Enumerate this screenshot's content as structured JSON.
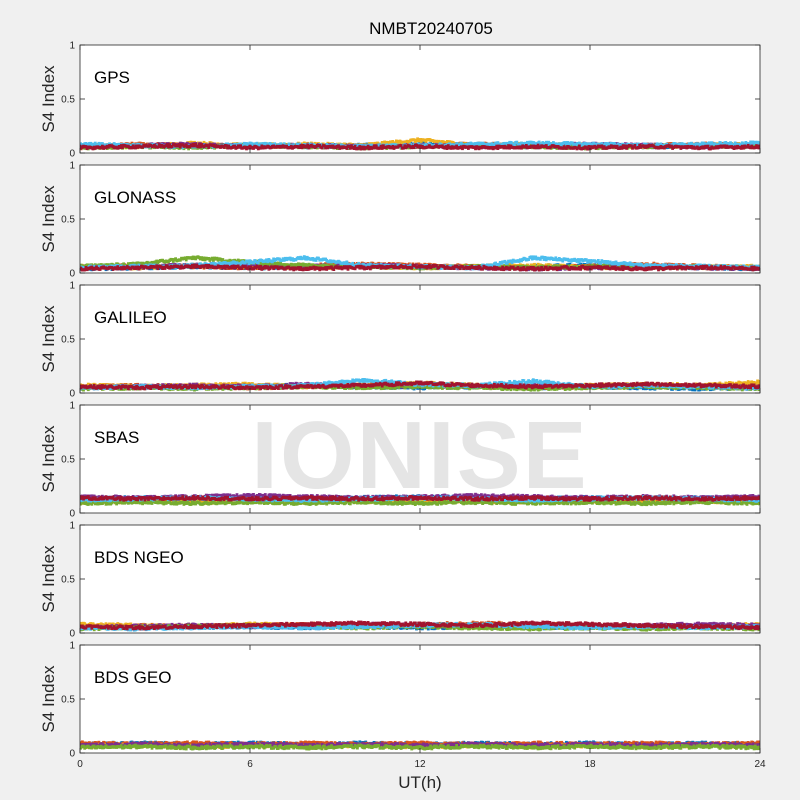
{
  "figure": {
    "title": "NMBT20240705",
    "watermark": "IONISE",
    "xlabel": "UT(h)",
    "ylabel": "S4 Index",
    "xticks": [
      "0",
      "6",
      "12",
      "18",
      "24"
    ],
    "yticks": [
      "0",
      "0.5",
      "1"
    ]
  },
  "colors": {
    "background": "#f0f0f0",
    "axes_face": "#ffffff",
    "series": [
      "#0072BD",
      "#D95319",
      "#EDB120",
      "#7E2F8E",
      "#77AC30",
      "#4DBEEE",
      "#A2142F"
    ]
  },
  "chart_data": [
    {
      "type": "scatter",
      "label": "GPS",
      "x": [
        0,
        2,
        4,
        6,
        8,
        10,
        12,
        14,
        16,
        18,
        20,
        22,
        24
      ],
      "ylim": [
        0,
        1
      ],
      "xlim": [
        0,
        24
      ],
      "grid": false,
      "series": [
        {
          "values": [
            0.06,
            0.07,
            0.06,
            0.07,
            0.06,
            0.07,
            0.08,
            0.07,
            0.06,
            0.07,
            0.06,
            0.07,
            0.06
          ]
        },
        {
          "values": [
            0.05,
            0.08,
            0.07,
            0.06,
            0.07,
            0.06,
            0.07,
            0.08,
            0.07,
            0.06,
            0.07,
            0.08,
            0.07
          ]
        },
        {
          "values": [
            0.07,
            0.06,
            0.09,
            0.07,
            0.08,
            0.07,
            0.12,
            0.07,
            0.08,
            0.07,
            0.06,
            0.07,
            0.08
          ]
        },
        {
          "values": [
            0.06,
            0.07,
            0.08,
            0.06,
            0.07,
            0.06,
            0.07,
            0.06,
            0.07,
            0.08,
            0.07,
            0.06,
            0.07
          ]
        },
        {
          "values": [
            0.05,
            0.06,
            0.05,
            0.07,
            0.06,
            0.05,
            0.06,
            0.07,
            0.06,
            0.05,
            0.06,
            0.07,
            0.06
          ]
        },
        {
          "values": [
            0.08,
            0.07,
            0.06,
            0.08,
            0.07,
            0.06,
            0.07,
            0.08,
            0.09,
            0.08,
            0.07,
            0.08,
            0.09
          ]
        },
        {
          "values": [
            0.05,
            0.06,
            0.07,
            0.05,
            0.06,
            0.05,
            0.06,
            0.05,
            0.06,
            0.05,
            0.06,
            0.05,
            0.06
          ]
        }
      ]
    },
    {
      "type": "scatter",
      "label": "GLONASS",
      "x": [
        0,
        2,
        4,
        6,
        8,
        10,
        12,
        14,
        16,
        18,
        20,
        22,
        24
      ],
      "ylim": [
        0,
        1
      ],
      "xlim": [
        0,
        24
      ],
      "grid": false,
      "series": [
        {
          "values": [
            0.04,
            0.05,
            0.06,
            0.05,
            0.06,
            0.07,
            0.06,
            0.05,
            0.06,
            0.07,
            0.06,
            0.05,
            0.04
          ]
        },
        {
          "values": [
            0.05,
            0.07,
            0.06,
            0.05,
            0.07,
            0.08,
            0.07,
            0.06,
            0.05,
            0.06,
            0.08,
            0.06,
            0.05
          ]
        },
        {
          "values": [
            0.06,
            0.05,
            0.07,
            0.06,
            0.05,
            0.06,
            0.05,
            0.06,
            0.07,
            0.05,
            0.06,
            0.05,
            0.06
          ]
        },
        {
          "values": [
            0.05,
            0.06,
            0.07,
            0.08,
            0.06,
            0.07,
            0.06,
            0.05,
            0.04,
            0.05,
            0.06,
            0.05,
            0.04
          ]
        },
        {
          "values": [
            0.06,
            0.08,
            0.14,
            0.1,
            0.07,
            0.06,
            0.05,
            0.06,
            0.05,
            0.06,
            0.05,
            0.06,
            0.05
          ]
        },
        {
          "values": [
            0.05,
            0.06,
            0.07,
            0.1,
            0.14,
            0.07,
            0.06,
            0.05,
            0.14,
            0.11,
            0.07,
            0.06,
            0.05
          ]
        },
        {
          "values": [
            0.04,
            0.05,
            0.06,
            0.05,
            0.04,
            0.05,
            0.06,
            0.05,
            0.04,
            0.05,
            0.04,
            0.05,
            0.04
          ]
        }
      ]
    },
    {
      "type": "scatter",
      "label": "GALILEO",
      "x": [
        0,
        2,
        4,
        6,
        8,
        10,
        12,
        14,
        16,
        18,
        20,
        22,
        24
      ],
      "ylim": [
        0,
        1
      ],
      "xlim": [
        0,
        24
      ],
      "grid": false,
      "series": [
        {
          "values": [
            0.05,
            0.06,
            0.05,
            0.06,
            0.07,
            0.06,
            0.05,
            0.06,
            0.05,
            0.06,
            0.05,
            0.04,
            0.05
          ]
        },
        {
          "values": [
            0.06,
            0.07,
            0.06,
            0.05,
            0.06,
            0.07,
            0.08,
            0.06,
            0.05,
            0.06,
            0.07,
            0.06,
            0.07
          ]
        },
        {
          "values": [
            0.07,
            0.06,
            0.07,
            0.08,
            0.06,
            0.07,
            0.09,
            0.07,
            0.06,
            0.07,
            0.08,
            0.07,
            0.1
          ]
        },
        {
          "values": [
            0.05,
            0.06,
            0.07,
            0.06,
            0.08,
            0.06,
            0.07,
            0.06,
            0.07,
            0.06,
            0.07,
            0.06,
            0.05
          ]
        },
        {
          "values": [
            0.04,
            0.05,
            0.04,
            0.05,
            0.06,
            0.05,
            0.06,
            0.05,
            0.04,
            0.05,
            0.06,
            0.05,
            0.04
          ]
        },
        {
          "values": [
            0.05,
            0.06,
            0.05,
            0.06,
            0.07,
            0.12,
            0.08,
            0.07,
            0.11,
            0.06,
            0.07,
            0.06,
            0.05
          ]
        },
        {
          "values": [
            0.06,
            0.05,
            0.06,
            0.05,
            0.06,
            0.07,
            0.09,
            0.07,
            0.06,
            0.07,
            0.08,
            0.07,
            0.06
          ]
        }
      ]
    },
    {
      "type": "scatter",
      "label": "SBAS",
      "x": [
        0,
        2,
        4,
        6,
        8,
        10,
        12,
        14,
        16,
        18,
        20,
        22,
        24
      ],
      "ylim": [
        0,
        1
      ],
      "xlim": [
        0,
        24
      ],
      "grid": false,
      "series": [
        {
          "values": [
            0.13,
            0.14,
            0.13,
            0.14,
            0.13,
            0.14,
            0.15,
            0.14,
            0.13,
            0.14,
            0.13,
            0.14,
            0.13
          ]
        },
        {
          "values": [
            0.12,
            0.13,
            0.12,
            0.13,
            0.12,
            0.13,
            0.12,
            0.13,
            0.12,
            0.13,
            0.12,
            0.13,
            0.12
          ]
        },
        {
          "values": [
            0.1,
            0.11,
            0.1,
            0.11,
            0.1,
            0.11,
            0.1,
            0.11,
            0.1,
            0.11,
            0.1,
            0.11,
            0.1
          ]
        },
        {
          "values": [
            0.15,
            0.14,
            0.15,
            0.16,
            0.15,
            0.14,
            0.15,
            0.16,
            0.15,
            0.14,
            0.15,
            0.14,
            0.15
          ]
        },
        {
          "values": [
            0.09,
            0.1,
            0.09,
            0.1,
            0.09,
            0.1,
            0.09,
            0.1,
            0.09,
            0.1,
            0.09,
            0.1,
            0.09
          ]
        },
        {
          "values": [
            0.12,
            0.13,
            0.14,
            0.13,
            0.12,
            0.13,
            0.14,
            0.13,
            0.12,
            0.13,
            0.14,
            0.13,
            0.12
          ]
        },
        {
          "values": [
            0.14,
            0.13,
            0.14,
            0.13,
            0.14,
            0.13,
            0.14,
            0.13,
            0.14,
            0.13,
            0.14,
            0.13,
            0.14
          ]
        }
      ]
    },
    {
      "type": "scatter",
      "label": "BDS NGEO",
      "x": [
        0,
        2,
        4,
        6,
        8,
        10,
        12,
        14,
        16,
        18,
        20,
        22,
        24
      ],
      "ylim": [
        0,
        1
      ],
      "xlim": [
        0,
        24
      ],
      "grid": false,
      "series": [
        {
          "values": [
            0.05,
            0.06,
            0.05,
            0.06,
            0.05,
            0.06,
            0.05,
            0.06,
            0.05,
            0.06,
            0.05,
            0.06,
            0.05
          ]
        },
        {
          "values": [
            0.06,
            0.07,
            0.06,
            0.07,
            0.08,
            0.07,
            0.08,
            0.09,
            0.08,
            0.07,
            0.06,
            0.07,
            0.06
          ]
        },
        {
          "values": [
            0.08,
            0.07,
            0.06,
            0.08,
            0.07,
            0.06,
            0.07,
            0.06,
            0.07,
            0.06,
            0.05,
            0.06,
            0.08
          ]
        },
        {
          "values": [
            0.05,
            0.06,
            0.07,
            0.06,
            0.07,
            0.08,
            0.07,
            0.06,
            0.07,
            0.06,
            0.07,
            0.08,
            0.07
          ]
        },
        {
          "values": [
            0.04,
            0.05,
            0.06,
            0.07,
            0.06,
            0.05,
            0.06,
            0.05,
            0.04,
            0.05,
            0.04,
            0.05,
            0.04
          ]
        },
        {
          "values": [
            0.05,
            0.04,
            0.05,
            0.06,
            0.05,
            0.06,
            0.07,
            0.08,
            0.06,
            0.05,
            0.06,
            0.05,
            0.06
          ]
        },
        {
          "values": [
            0.06,
            0.05,
            0.06,
            0.07,
            0.08,
            0.09,
            0.08,
            0.07,
            0.09,
            0.08,
            0.07,
            0.06,
            0.05
          ]
        }
      ]
    },
    {
      "type": "scatter",
      "label": "BDS GEO",
      "x": [
        0,
        2,
        4,
        6,
        8,
        10,
        12,
        14,
        16,
        18,
        20,
        22,
        24
      ],
      "ylim": [
        0,
        1
      ],
      "xlim": [
        0,
        24
      ],
      "grid": false,
      "series": [
        {
          "values": [
            0.08,
            0.09,
            0.08,
            0.09,
            0.08,
            0.09,
            0.08,
            0.09,
            0.08,
            0.09,
            0.08,
            0.09,
            0.08
          ]
        },
        {
          "values": [
            0.09,
            0.08,
            0.09,
            0.08,
            0.09,
            0.08,
            0.09,
            0.08,
            0.09,
            0.08,
            0.09,
            0.08,
            0.09
          ]
        },
        {
          "values": [
            0.06,
            0.07,
            0.06,
            0.07,
            0.06,
            0.07,
            0.06,
            0.07,
            0.06,
            0.07,
            0.06,
            0.07,
            0.06
          ]
        },
        {
          "values": [
            0.07,
            0.08,
            0.07,
            0.08,
            0.07,
            0.08,
            0.07,
            0.08,
            0.07,
            0.08,
            0.07,
            0.08,
            0.07
          ]
        },
        {
          "values": [
            0.05,
            0.06,
            0.05,
            0.06,
            0.05,
            0.06,
            0.05,
            0.06,
            0.05,
            0.06,
            0.05,
            0.06,
            0.05
          ]
        }
      ]
    }
  ]
}
